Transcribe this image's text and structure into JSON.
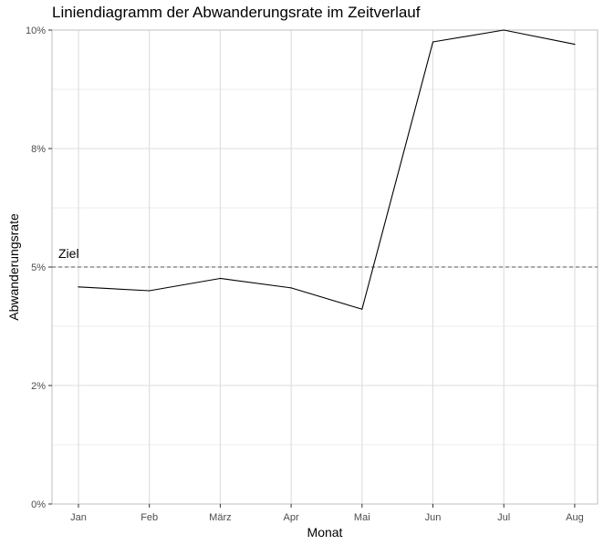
{
  "chart_data": {
    "type": "line",
    "title": "Liniendiagramm der Abwanderungsrate im Zeitverlauf",
    "xlabel": "Monat",
    "ylabel": "Abwanderungsrate",
    "categories": [
      "Jan",
      "Feb",
      "März",
      "Apr",
      "Mai",
      "Jun",
      "Jul",
      "Aug"
    ],
    "series": [
      {
        "values": [
          0.0458,
          0.045,
          0.0476,
          0.0456,
          0.0411,
          0.0975,
          0.1,
          0.097
        ],
        "color": "#000000"
      }
    ],
    "ylim": [
      0,
      0.1
    ],
    "yticks": [
      {
        "value": 0,
        "label": "0%"
      },
      {
        "value": 0.025,
        "label": "2%"
      },
      {
        "value": 0.05,
        "label": "5%"
      },
      {
        "value": 0.075,
        "label": "8%"
      },
      {
        "value": 0.1,
        "label": "10%"
      }
    ],
    "reference_line": {
      "value": 0.05,
      "label": "Ziel",
      "style": "dashed",
      "color": "#555555"
    },
    "grid": true,
    "legend": "none",
    "colors": {
      "grid": "#dddddd",
      "axis_text": "#4d4d4d",
      "panel_border": "#bfbfbf"
    }
  }
}
